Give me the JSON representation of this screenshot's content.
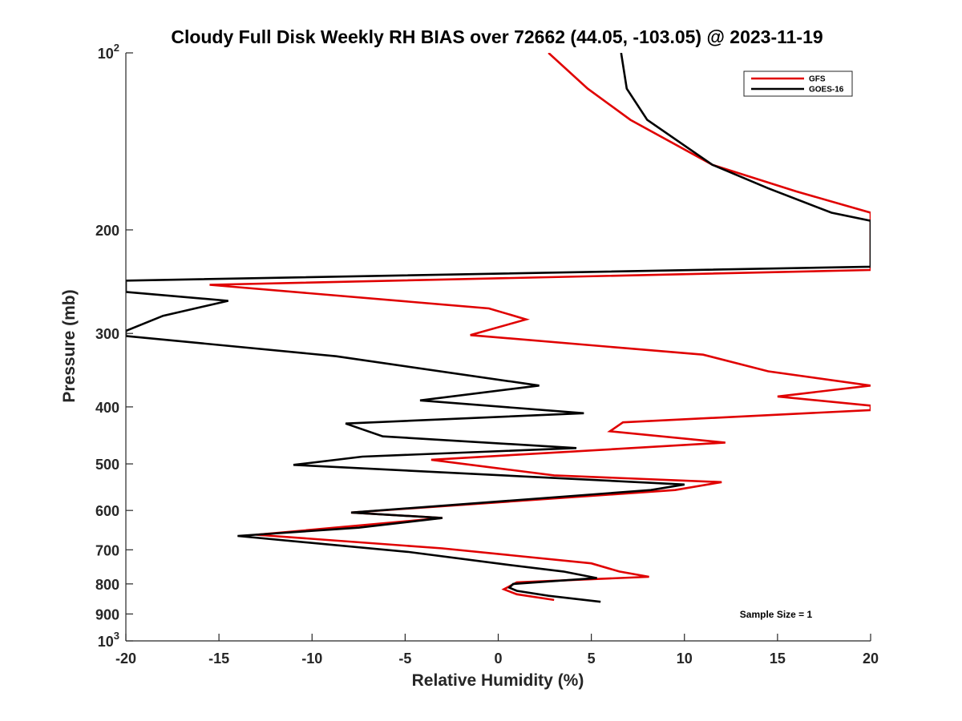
{
  "chart_data": {
    "type": "line",
    "title": "Cloudy Full Disk Weekly RH BIAS over 72662 (44.05, -103.05) @ 2023-11-19",
    "xlabel": "Relative Humidity (%)",
    "ylabel": "Pressure (mb)",
    "xlim": [
      -20,
      20
    ],
    "ylim": [
      100,
      1000
    ],
    "yscale": "log",
    "y_reversed": true,
    "grid": false,
    "legend_position": "top-right",
    "x_ticks": [
      -20,
      -15,
      -10,
      -5,
      0,
      5,
      10,
      15,
      20
    ],
    "x_tick_labels": [
      "-20",
      "-15",
      "-10",
      "-5",
      "0",
      "5",
      "10",
      "15",
      "20"
    ],
    "y_ticks": [
      100,
      200,
      300,
      400,
      500,
      600,
      700,
      800,
      900,
      1000
    ],
    "y_tick_labels": [
      "10^2",
      "200",
      "300",
      "400",
      "500",
      "600",
      "700",
      "800",
      "900",
      "10^3"
    ],
    "annotation": "Sample Size = 1",
    "series": [
      {
        "name": "GFS",
        "color": "#e00000",
        "points": [
          [
            2.7,
            100
          ],
          [
            4.8,
            115
          ],
          [
            7.1,
            130
          ],
          [
            11.5,
            155
          ],
          [
            16.0,
            172
          ],
          [
            20.0,
            187
          ],
          [
            20.0,
            234
          ],
          [
            -15.5,
            248
          ],
          [
            -0.5,
            272
          ],
          [
            1.5,
            284
          ],
          [
            -1.5,
            302
          ],
          [
            11.0,
            326
          ],
          [
            14.5,
            348
          ],
          [
            20.0,
            368
          ],
          [
            15.0,
            384
          ],
          [
            20.0,
            398
          ],
          [
            20.0,
            405
          ],
          [
            6.7,
            425
          ],
          [
            6.0,
            440
          ],
          [
            12.2,
            460
          ],
          [
            -3.6,
            492
          ],
          [
            3.0,
            523
          ],
          [
            12.0,
            537
          ],
          [
            9.5,
            554
          ],
          [
            -7.9,
            605
          ],
          [
            -3.0,
            618
          ],
          [
            -13.0,
            660
          ],
          [
            -3.0,
            696
          ],
          [
            5.0,
            738
          ],
          [
            6.5,
            762
          ],
          [
            8.1,
            778
          ],
          [
            1.0,
            795
          ],
          [
            0.3,
            817
          ],
          [
            1.0,
            833
          ],
          [
            3.0,
            852
          ]
        ]
      },
      {
        "name": "GOES-16",
        "color": "#000000",
        "points": [
          [
            6.6,
            100
          ],
          [
            6.9,
            115
          ],
          [
            8.0,
            130
          ],
          [
            11.5,
            155
          ],
          [
            14.5,
            170
          ],
          [
            17.9,
            187
          ],
          [
            20.0,
            193
          ],
          [
            20.0,
            231
          ],
          [
            -20.0,
            244
          ],
          [
            -20.0,
            255
          ],
          [
            -14.5,
            264
          ],
          [
            -18.0,
            280
          ],
          [
            -20.0,
            297
          ],
          [
            -20.0,
            303
          ],
          [
            -8.7,
            328
          ],
          [
            2.2,
            368
          ],
          [
            -4.2,
            390
          ],
          [
            4.6,
            410
          ],
          [
            -8.2,
            427
          ],
          [
            -6.2,
            449
          ],
          [
            4.2,
            470
          ],
          [
            -7.3,
            486
          ],
          [
            -11.0,
            502
          ],
          [
            2.3,
            527
          ],
          [
            10.0,
            542
          ],
          [
            8.2,
            554
          ],
          [
            -7.9,
            605
          ],
          [
            -3.0,
            618
          ],
          [
            -7.5,
            642
          ],
          [
            -14.0,
            663
          ],
          [
            -4.8,
            706
          ],
          [
            0.5,
            742
          ],
          [
            3.5,
            762
          ],
          [
            5.3,
            782
          ],
          [
            0.8,
            800
          ],
          [
            0.6,
            812
          ],
          [
            1.0,
            822
          ],
          [
            2.7,
            838
          ],
          [
            5.5,
            858
          ]
        ]
      }
    ]
  }
}
